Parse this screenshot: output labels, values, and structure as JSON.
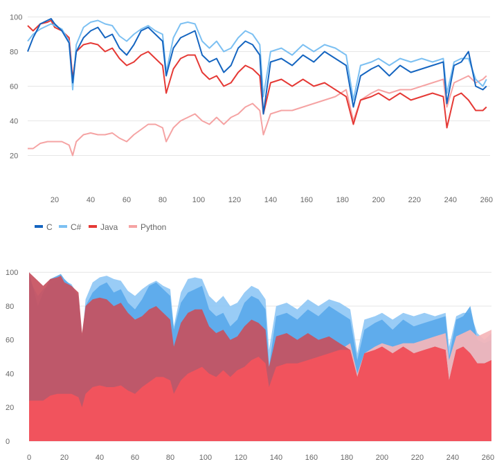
{
  "chart_data": [
    {
      "type": "line",
      "xlim": [
        5,
        262
      ],
      "ylim": [
        5,
        105
      ],
      "x_ticks": [
        20,
        40,
        60,
        80,
        100,
        120,
        140,
        160,
        180,
        200,
        220,
        240,
        260
      ],
      "y_ticks": [
        20,
        40,
        60,
        80,
        100
      ],
      "legend": [
        "C",
        "C#",
        "Java",
        "Python"
      ],
      "grid": true,
      "series": [
        {
          "name": "C",
          "color": "#1565c0",
          "x": [
            5,
            8,
            12,
            16,
            18,
            20,
            24,
            28,
            30,
            32,
            36,
            40,
            44,
            48,
            52,
            56,
            60,
            64,
            68,
            72,
            76,
            80,
            82,
            86,
            90,
            94,
            98,
            102,
            106,
            110,
            114,
            118,
            122,
            126,
            130,
            134,
            136,
            140,
            146,
            152,
            158,
            164,
            170,
            176,
            182,
            186,
            190,
            196,
            200,
            206,
            212,
            218,
            224,
            230,
            236,
            238,
            242,
            246,
            250,
            254,
            258,
            260
          ],
          "values": [
            80,
            88,
            96,
            98,
            99,
            96,
            92,
            85,
            62,
            80,
            88,
            92,
            94,
            88,
            90,
            82,
            78,
            84,
            92,
            94,
            90,
            86,
            66,
            82,
            88,
            90,
            92,
            78,
            74,
            76,
            68,
            72,
            82,
            86,
            84,
            78,
            44,
            74,
            76,
            72,
            78,
            74,
            80,
            76,
            72,
            48,
            66,
            70,
            72,
            66,
            72,
            68,
            70,
            72,
            74,
            50,
            72,
            74,
            80,
            60,
            58,
            60
          ]
        },
        {
          "name": "C#",
          "color": "#7cc0f2",
          "x": [
            5,
            8,
            12,
            16,
            18,
            20,
            24,
            28,
            30,
            32,
            36,
            40,
            44,
            48,
            52,
            56,
            60,
            64,
            68,
            72,
            76,
            80,
            82,
            86,
            90,
            94,
            98,
            102,
            106,
            110,
            114,
            118,
            122,
            126,
            130,
            134,
            136,
            140,
            146,
            152,
            158,
            164,
            170,
            176,
            182,
            186,
            190,
            196,
            200,
            206,
            212,
            218,
            224,
            230,
            236,
            238,
            242,
            246,
            250,
            254,
            258,
            260
          ],
          "values": [
            86,
            90,
            93,
            95,
            96,
            95,
            93,
            86,
            58,
            84,
            94,
            97,
            98,
            96,
            95,
            89,
            86,
            90,
            93,
            95,
            92,
            90,
            68,
            88,
            96,
            97,
            96,
            86,
            82,
            86,
            80,
            82,
            88,
            92,
            90,
            84,
            54,
            80,
            82,
            78,
            84,
            80,
            84,
            82,
            78,
            52,
            72,
            74,
            76,
            72,
            76,
            74,
            76,
            74,
            76,
            56,
            74,
            76,
            76,
            64,
            60,
            64
          ]
        },
        {
          "name": "Java",
          "color": "#e53935",
          "x": [
            5,
            8,
            12,
            16,
            18,
            20,
            24,
            28,
            30,
            32,
            36,
            40,
            44,
            48,
            52,
            56,
            60,
            64,
            68,
            72,
            76,
            80,
            82,
            86,
            90,
            94,
            98,
            102,
            106,
            110,
            114,
            118,
            122,
            126,
            130,
            134,
            136,
            140,
            146,
            152,
            158,
            164,
            170,
            176,
            182,
            186,
            190,
            196,
            200,
            206,
            212,
            218,
            224,
            230,
            236,
            238,
            242,
            246,
            250,
            254,
            258,
            260
          ],
          "values": [
            95,
            92,
            96,
            97,
            98,
            94,
            92,
            88,
            64,
            80,
            84,
            85,
            84,
            80,
            82,
            76,
            72,
            74,
            78,
            80,
            76,
            72,
            56,
            70,
            76,
            78,
            78,
            68,
            64,
            66,
            60,
            62,
            68,
            72,
            70,
            66,
            44,
            62,
            64,
            60,
            64,
            60,
            62,
            58,
            54,
            38,
            52,
            54,
            56,
            52,
            56,
            52,
            54,
            56,
            54,
            36,
            54,
            56,
            52,
            46,
            46,
            48
          ]
        },
        {
          "name": "Python",
          "color": "#f5a3a3",
          "x": [
            5,
            8,
            12,
            16,
            18,
            20,
            24,
            28,
            30,
            32,
            36,
            40,
            44,
            48,
            52,
            56,
            60,
            64,
            68,
            72,
            76,
            80,
            82,
            86,
            90,
            94,
            98,
            102,
            106,
            110,
            114,
            118,
            122,
            126,
            130,
            134,
            136,
            140,
            146,
            152,
            158,
            164,
            170,
            176,
            182,
            186,
            190,
            196,
            200,
            206,
            212,
            218,
            224,
            230,
            236,
            238,
            242,
            246,
            250,
            254,
            258,
            260
          ],
          "values": [
            24,
            24,
            27,
            28,
            28,
            28,
            28,
            26,
            20,
            28,
            32,
            33,
            32,
            32,
            33,
            30,
            28,
            32,
            35,
            38,
            38,
            36,
            28,
            36,
            40,
            42,
            44,
            40,
            38,
            42,
            38,
            42,
            44,
            48,
            50,
            46,
            32,
            44,
            46,
            46,
            48,
            50,
            52,
            54,
            58,
            40,
            52,
            56,
            58,
            56,
            58,
            58,
            60,
            62,
            64,
            48,
            62,
            64,
            66,
            62,
            64,
            66
          ]
        }
      ]
    },
    {
      "type": "area",
      "xlim": [
        0,
        262
      ],
      "ylim": [
        0,
        105
      ],
      "x_ticks": [
        0,
        20,
        40,
        60,
        80,
        100,
        120,
        140,
        160,
        180,
        200,
        220,
        240,
        260
      ],
      "y_ticks": [
        0,
        20,
        40,
        60,
        80,
        100
      ],
      "grid": true,
      "series": [
        {
          "name": "C#",
          "color": "#90c8f5",
          "x": [
            0,
            5,
            8,
            12,
            16,
            18,
            20,
            24,
            28,
            30,
            32,
            36,
            40,
            44,
            48,
            52,
            56,
            60,
            64,
            68,
            72,
            76,
            80,
            82,
            86,
            90,
            94,
            98,
            102,
            106,
            110,
            114,
            118,
            122,
            126,
            130,
            134,
            136,
            140,
            146,
            152,
            158,
            164,
            170,
            176,
            182,
            186,
            190,
            196,
            200,
            206,
            212,
            218,
            224,
            230,
            236,
            238,
            242,
            246,
            250,
            254,
            258,
            262
          ],
          "values": [
            96,
            86,
            90,
            93,
            95,
            96,
            95,
            93,
            86,
            58,
            84,
            94,
            97,
            98,
            96,
            95,
            89,
            86,
            90,
            93,
            95,
            92,
            90,
            68,
            88,
            96,
            97,
            96,
            86,
            82,
            86,
            80,
            82,
            88,
            92,
            90,
            84,
            54,
            80,
            82,
            78,
            84,
            80,
            84,
            82,
            78,
            52,
            72,
            74,
            76,
            72,
            76,
            74,
            76,
            74,
            76,
            56,
            74,
            76,
            76,
            64,
            60,
            64
          ]
        },
        {
          "name": "C",
          "color": "#5aa9ea",
          "x": [
            0,
            5,
            8,
            12,
            16,
            18,
            20,
            24,
            28,
            30,
            32,
            36,
            40,
            44,
            48,
            52,
            56,
            60,
            64,
            68,
            72,
            76,
            80,
            82,
            86,
            90,
            94,
            98,
            102,
            106,
            110,
            114,
            118,
            122,
            126,
            130,
            134,
            136,
            140,
            146,
            152,
            158,
            164,
            170,
            176,
            182,
            186,
            190,
            196,
            200,
            206,
            212,
            218,
            224,
            230,
            236,
            238,
            242,
            246,
            250,
            254,
            258,
            262
          ],
          "values": [
            100,
            80,
            88,
            96,
            98,
            99,
            96,
            92,
            85,
            62,
            80,
            88,
            92,
            94,
            88,
            90,
            82,
            78,
            84,
            92,
            94,
            90,
            86,
            66,
            82,
            88,
            90,
            92,
            78,
            74,
            76,
            68,
            72,
            82,
            86,
            84,
            78,
            44,
            74,
            76,
            72,
            78,
            74,
            80,
            76,
            72,
            48,
            66,
            70,
            72,
            66,
            72,
            68,
            70,
            72,
            74,
            50,
            72,
            74,
            80,
            60,
            58,
            60
          ]
        },
        {
          "name": "Python",
          "color": "#f5b5b8",
          "x": [
            0,
            5,
            8,
            12,
            16,
            18,
            20,
            24,
            28,
            30,
            32,
            36,
            40,
            44,
            48,
            52,
            56,
            60,
            64,
            68,
            72,
            76,
            80,
            82,
            86,
            90,
            94,
            98,
            102,
            106,
            110,
            114,
            118,
            122,
            126,
            130,
            134,
            136,
            140,
            146,
            152,
            158,
            164,
            170,
            176,
            182,
            186,
            190,
            196,
            200,
            206,
            212,
            218,
            224,
            230,
            236,
            238,
            242,
            246,
            250,
            254,
            258,
            262
          ],
          "values": [
            24,
            24,
            24,
            27,
            28,
            28,
            28,
            28,
            26,
            20,
            28,
            32,
            33,
            32,
            32,
            33,
            30,
            28,
            32,
            35,
            38,
            38,
            36,
            28,
            36,
            40,
            42,
            44,
            40,
            38,
            42,
            38,
            42,
            44,
            48,
            50,
            46,
            32,
            44,
            46,
            46,
            48,
            50,
            52,
            54,
            58,
            40,
            52,
            56,
            58,
            56,
            58,
            58,
            60,
            62,
            64,
            48,
            62,
            64,
            66,
            62,
            64,
            66
          ]
        },
        {
          "name": "Java",
          "color": "#c7505e",
          "x": [
            0,
            5,
            8,
            12,
            16,
            18,
            20,
            24,
            28,
            30,
            32,
            36,
            40,
            44,
            48,
            52,
            56,
            60,
            64,
            68,
            72,
            76,
            80,
            82,
            86,
            90,
            94,
            98,
            102,
            106,
            110,
            114,
            118,
            122,
            126,
            130,
            134,
            136,
            140,
            146,
            152,
            158,
            164,
            170,
            176,
            182,
            186,
            190,
            196,
            200,
            206,
            212,
            218,
            224,
            230,
            236,
            238,
            242,
            246,
            250,
            254,
            258,
            262
          ],
          "values": [
            100,
            95,
            92,
            96,
            97,
            98,
            94,
            92,
            88,
            64,
            80,
            84,
            85,
            84,
            80,
            82,
            76,
            72,
            74,
            78,
            80,
            76,
            72,
            56,
            70,
            76,
            78,
            78,
            68,
            64,
            66,
            60,
            62,
            68,
            72,
            70,
            66,
            44,
            62,
            64,
            60,
            64,
            60,
            62,
            58,
            54,
            38,
            52,
            54,
            56,
            52,
            56,
            52,
            54,
            56,
            54,
            36,
            54,
            56,
            52,
            46,
            46,
            48
          ]
        }
      ],
      "min_fill_color": "#f1535d"
    }
  ]
}
